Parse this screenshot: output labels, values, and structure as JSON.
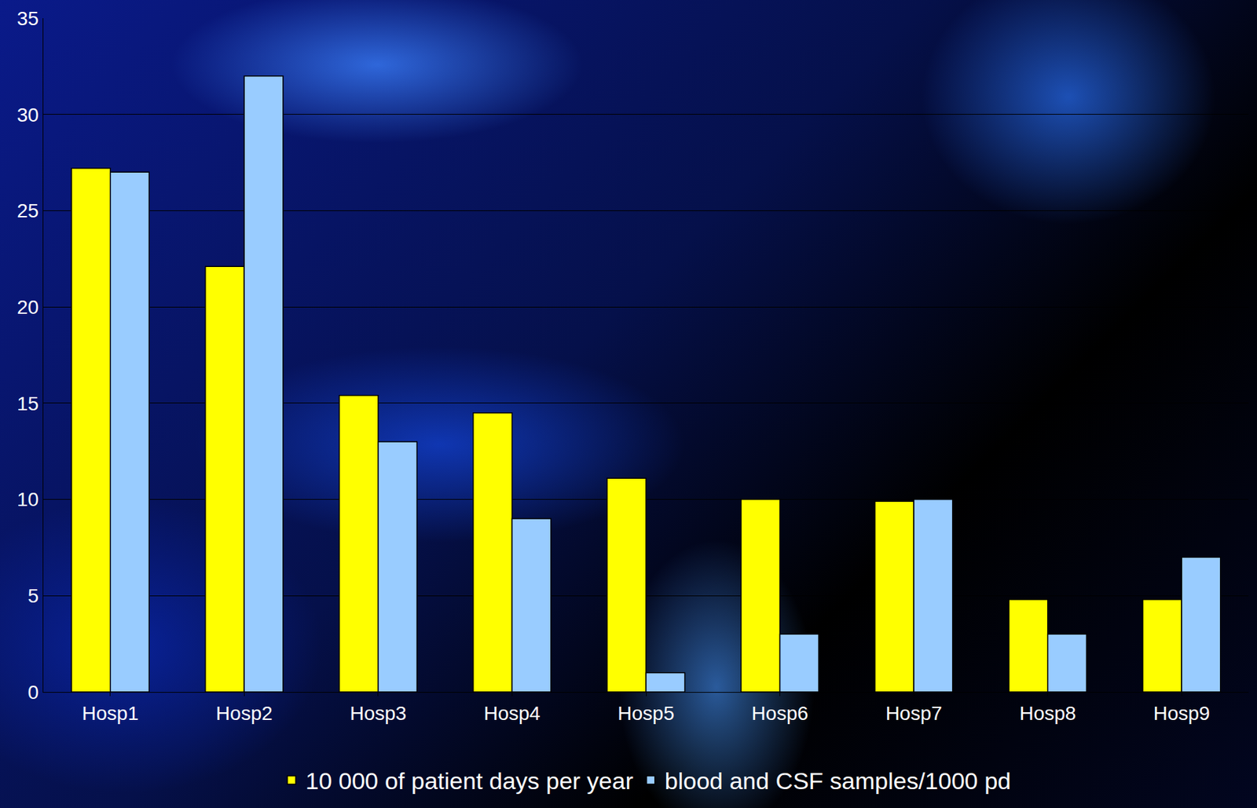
{
  "chart_data": {
    "type": "bar",
    "categories": [
      "Hosp1",
      "Hosp2",
      "Hosp3",
      "Hosp4",
      "Hosp5",
      "Hosp6",
      "Hosp7",
      "Hosp8",
      "Hosp9"
    ],
    "series": [
      {
        "name": "10 000 of patient days per year",
        "color": "#ffff00",
        "values": [
          27.2,
          22.1,
          15.4,
          14.5,
          11.1,
          10.0,
          9.9,
          4.8,
          4.8
        ]
      },
      {
        "name": "blood and CSF samples/1000 pd",
        "color": "#99ccff",
        "values": [
          27.0,
          32.0,
          13.0,
          9.0,
          1.0,
          3.0,
          10.0,
          3.0,
          7.0
        ]
      }
    ],
    "ylim": [
      0,
      35
    ],
    "yticks": [
      0,
      5,
      10,
      15,
      20,
      25,
      30,
      35
    ],
    "grid": true,
    "legend": "bottom"
  }
}
